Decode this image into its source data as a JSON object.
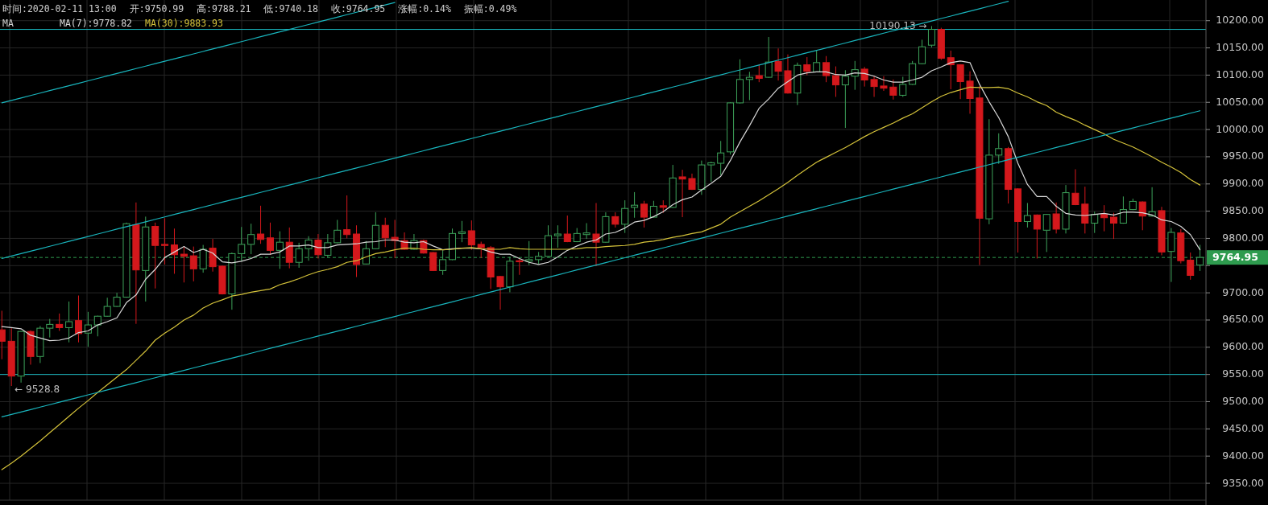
{
  "chart_data": {
    "type": "candlestick",
    "categories": [
      null,
      null,
      null,
      null,
      null,
      null,
      null,
      null,
      null,
      null,
      null,
      null,
      null,
      null,
      null,
      null,
      null,
      null,
      null,
      null,
      null,
      null,
      null,
      null,
      null,
      null,
      null,
      null,
      null,
      null,
      null,
      null,
      null,
      null,
      null,
      null,
      null,
      null,
      null,
      null,
      null,
      null,
      null,
      null,
      null,
      null,
      null,
      null,
      null,
      null,
      null,
      null,
      null,
      null,
      null,
      null,
      null,
      null,
      null,
      null,
      null,
      null,
      null,
      null,
      null,
      null,
      null,
      null,
      null,
      null,
      null,
      null,
      null,
      null,
      null,
      null,
      null,
      null,
      null,
      null,
      null,
      null,
      null,
      null,
      null,
      null,
      null,
      null,
      null,
      null,
      null,
      null,
      null,
      null,
      null,
      null,
      null,
      null,
      null,
      null,
      null,
      null,
      null,
      null,
      null,
      null,
      null,
      null,
      null,
      null,
      null,
      null,
      null,
      null,
      null,
      null,
      null,
      null,
      null,
      null,
      null,
      null,
      null,
      null,
      null,
      null
    ],
    "ohlc": [
      [
        9632,
        9667,
        9578,
        9611
      ],
      [
        9611,
        9635,
        9528.8,
        9547
      ],
      [
        9547,
        9630,
        9535,
        9629
      ],
      [
        9629,
        9631,
        9568,
        9583
      ],
      [
        9583,
        9639,
        9571,
        9635
      ],
      [
        9635,
        9652,
        9618,
        9642
      ],
      [
        9642,
        9662,
        9630,
        9636
      ],
      [
        9636,
        9684,
        9609,
        9647
      ],
      [
        9649,
        9695,
        9609,
        9625
      ],
      [
        9626,
        9665,
        9601,
        9641
      ],
      [
        9641,
        9658,
        9620,
        9657
      ],
      [
        9657,
        9691,
        9656,
        9675
      ],
      [
        9675,
        9700,
        9674,
        9692
      ],
      [
        9692,
        9829,
        9691,
        9827
      ],
      [
        9825,
        9866,
        9643,
        9742
      ],
      [
        9741,
        9840,
        9684,
        9821
      ],
      [
        9822,
        9829,
        9708,
        9787
      ],
      [
        9789,
        9837,
        9752,
        9787
      ],
      [
        9788,
        9818,
        9735,
        9770
      ],
      [
        9771,
        9785,
        9719,
        9767
      ],
      [
        9768,
        9785,
        9721,
        9744
      ],
      [
        9744,
        9788,
        9737,
        9780
      ],
      [
        9782,
        9799,
        9739,
        9748
      ],
      [
        9749,
        9750,
        9697,
        9698
      ],
      [
        9698,
        9774,
        9669,
        9772
      ],
      [
        9772,
        9821,
        9758,
        9789
      ],
      [
        9789,
        9827,
        9771,
        9807
      ],
      [
        9808,
        9860,
        9790,
        9798
      ],
      [
        9801,
        9829,
        9770,
        9778
      ],
      [
        9778,
        9813,
        9744,
        9793
      ],
      [
        9793,
        9820,
        9745,
        9756
      ],
      [
        9756,
        9792,
        9746,
        9781
      ],
      [
        9781,
        9804,
        9759,
        9797
      ],
      [
        9797,
        9808,
        9763,
        9770
      ],
      [
        9769,
        9808,
        9765,
        9792
      ],
      [
        9792,
        9834,
        9791,
        9815
      ],
      [
        9816,
        9879,
        9800,
        9807
      ],
      [
        9808,
        9824,
        9729,
        9752
      ],
      [
        9753,
        9795,
        9752,
        9781
      ],
      [
        9781,
        9848,
        9780,
        9824
      ],
      [
        9824,
        9838,
        9784,
        9801
      ],
      [
        9802,
        9834,
        9764,
        9796
      ],
      [
        9796,
        9811,
        9779,
        9780
      ],
      [
        9780,
        9808,
        9779,
        9796
      ],
      [
        9796,
        9798,
        9772,
        9773
      ],
      [
        9774,
        9775,
        9740,
        9741
      ],
      [
        9741,
        9778,
        9733,
        9761
      ],
      [
        9761,
        9818,
        9760,
        9809
      ],
      [
        9809,
        9832,
        9793,
        9812
      ],
      [
        9814,
        9833,
        9779,
        9788
      ],
      [
        9789,
        9794,
        9764,
        9783
      ],
      [
        9783,
        9786,
        9707,
        9729
      ],
      [
        9730,
        9731,
        9669,
        9711
      ],
      [
        9711,
        9766,
        9701,
        9758
      ],
      [
        9759,
        9762,
        9733,
        9757
      ],
      [
        9758,
        9795,
        9751,
        9761
      ],
      [
        9761,
        9775,
        9753,
        9767
      ],
      [
        9767,
        9824,
        9766,
        9805
      ],
      [
        9805,
        9824,
        9783,
        9808
      ],
      [
        9808,
        9842,
        9793,
        9794
      ],
      [
        9794,
        9819,
        9793,
        9809
      ],
      [
        9807,
        9828,
        9799,
        9810
      ],
      [
        9808,
        9865,
        9749,
        9793
      ],
      [
        9793,
        9848,
        9792,
        9840
      ],
      [
        9840,
        9848,
        9820,
        9826
      ],
      [
        9826,
        9870,
        9810,
        9855
      ],
      [
        9857,
        9885,
        9838,
        9861
      ],
      [
        9863,
        9869,
        9820,
        9839
      ],
      [
        9839,
        9869,
        9838,
        9859
      ],
      [
        9860,
        9870,
        9847,
        9857
      ],
      [
        9857,
        9935,
        9856,
        9911
      ],
      [
        9913,
        9926,
        9839,
        9909
      ],
      [
        9910,
        9919,
        9889,
        9890
      ],
      [
        9890,
        9943,
        9880,
        9935
      ],
      [
        9935,
        9941,
        9904,
        9939
      ],
      [
        9938,
        9979,
        9916,
        9957
      ],
      [
        9959,
        10050,
        9954,
        10049
      ],
      [
        10049,
        10129,
        10048,
        10092
      ],
      [
        10092,
        10106,
        10054,
        10096
      ],
      [
        10099,
        10120,
        10087,
        10094
      ],
      [
        10096,
        10170,
        10095,
        10124
      ],
      [
        10125,
        10149,
        10090,
        10107
      ],
      [
        10108,
        10138,
        10066,
        10067
      ],
      [
        10067,
        10123,
        10045,
        10118
      ],
      [
        10119,
        10133,
        10100,
        10107
      ],
      [
        10106,
        10145,
        10105,
        10123
      ],
      [
        10123,
        10135,
        10087,
        10099
      ],
      [
        10099,
        10116,
        10060,
        10082
      ],
      [
        10082,
        10109,
        10003,
        10098
      ],
      [
        10098,
        10126,
        10073,
        10110
      ],
      [
        10111,
        10115,
        10079,
        10091
      ],
      [
        10092,
        10098,
        10060,
        10079
      ],
      [
        10080,
        10098,
        10071,
        10076
      ],
      [
        10078,
        10092,
        10055,
        10063
      ],
      [
        10063,
        10097,
        10060,
        10083
      ],
      [
        10083,
        10126,
        10082,
        10121
      ],
      [
        10121,
        10165,
        10120,
        10152
      ],
      [
        10155,
        10190.13,
        10151,
        10184
      ],
      [
        10184,
        10187,
        10128,
        10131
      ],
      [
        10132,
        10145,
        10074,
        10119
      ],
      [
        10119,
        10120,
        10056,
        10088
      ],
      [
        10089,
        10107,
        10029,
        10057
      ],
      [
        10058,
        10080,
        9751,
        9837
      ],
      [
        9836,
        10019,
        9826,
        9953
      ],
      [
        9953,
        9993,
        9937,
        9965
      ],
      [
        9965,
        9968,
        9864,
        9890
      ],
      [
        9891,
        9892,
        9774,
        9831
      ],
      [
        9831,
        9865,
        9820,
        9842
      ],
      [
        9843,
        9844,
        9763,
        9817
      ],
      [
        9815,
        9845,
        9775,
        9844
      ],
      [
        9845,
        9866,
        9809,
        9817
      ],
      [
        9817,
        9898,
        9809,
        9884
      ],
      [
        9883,
        9927,
        9861,
        9862
      ],
      [
        9863,
        9895,
        9809,
        9828
      ],
      [
        9828,
        9849,
        9810,
        9844
      ],
      [
        9844,
        9861,
        9813,
        9838
      ],
      [
        9839,
        9847,
        9799,
        9828
      ],
      [
        9828,
        9877,
        9827,
        9853
      ],
      [
        9853,
        9873,
        9852,
        9868
      ],
      [
        9867,
        9868,
        9815,
        9841
      ],
      [
        9841,
        9894,
        9840,
        9849
      ],
      [
        9851,
        9858,
        9769,
        9775
      ],
      [
        9776,
        9819,
        9720,
        9811
      ],
      [
        9810,
        9817,
        9754,
        9759
      ],
      [
        9760,
        9774,
        9724,
        9732
      ],
      [
        9750.99,
        9788.21,
        9740.18,
        9764.95
      ]
    ],
    "series": [
      {
        "name": "MA(7):9778.82",
        "type": "line",
        "color": "#d8d8d8",
        "values": [
          9638,
          9636,
          9634,
          9622,
          9617,
          9612,
          9613,
          9617,
          9627,
          9630,
          9641,
          9647,
          9654,
          9682,
          9696,
          9725,
          9743,
          9765,
          9775,
          9785,
          9774,
          9780,
          9773,
          9757,
          9755,
          9758,
          9763,
          9771,
          9771,
          9775,
          9786,
          9786,
          9788,
          9783,
          9783,
          9788,
          9789,
          9790,
          9793,
          9794,
          9797,
          9797,
          9793,
          9792,
          9794,
          9786,
          9779,
          9781,
          9782,
          9782,
          9781,
          9775,
          9771,
          9771,
          9763,
          9756,
          9752,
          9756,
          9766,
          9778,
          9786,
          9793,
          9797,
          9808,
          9811,
          9819,
          9830,
          9833,
          9840,
          9849,
          9862,
          9871,
          9876,
          9889,
          9901,
          9914,
          9943,
          9977,
          10007,
          10039,
          10056,
          10076,
          10088,
          10100,
          10104,
          10106,
          10106,
          10101,
          10100,
          10104,
          10103,
          10098,
          10091,
          10087,
          10087,
          10091,
          10096,
          10108,
          10115,
          10123,
          10126,
          10123,
          10083,
          10051,
          10022,
          9987,
          9938,
          9899,
          9877,
          9877,
          9859,
          9846,
          9843,
          9842,
          9844,
          9846,
          9843,
          9848,
          9848,
          9847,
          9843,
          9834,
          9831,
          9822,
          9807,
          9779
        ]
      },
      {
        "name": "MA(30):9883.93",
        "type": "line",
        "color": "#d4c23a",
        "values": [
          9375,
          9387,
          9400,
          9414,
          9428,
          9443,
          9458,
          9473,
          9488,
          9502,
          9517,
          9531,
          9545,
          9559,
          9576,
          9593,
          9613,
          9626,
          9637,
          9650,
          9659,
          9672,
          9681,
          9687,
          9694,
          9697,
          9701,
          9704,
          9707,
          9715,
          9720,
          9726,
          9733,
          9739,
          9743,
          9748,
          9756,
          9759,
          9766,
          9772,
          9775,
          9779,
          9782,
          9782,
          9780,
          9779,
          9779,
          9780,
          9782,
          9783,
          9781,
          9780,
          9780,
          9783,
          9781,
          9780,
          9780,
          9780,
          9780,
          9780,
          9781,
          9783,
          9783,
          9785,
          9786,
          9787,
          9789,
          9793,
          9795,
          9798,
          9802,
          9805,
          9809,
          9812,
          9819,
          9826,
          9839,
          9849,
          9859,
          9869,
          9880,
          9891,
          9903,
          9916,
          9928,
          9940,
          9949,
          9958,
          9967,
          9977,
          9987,
          9996,
          10004,
          10012,
          10021,
          10029,
          10040,
          10051,
          10061,
          10068,
          10073,
          10078,
          10077,
          10077,
          10078,
          10075,
          10067,
          10060,
          10051,
          10044,
          10032,
          10024,
          10017,
          10008,
          10000,
          9992,
          9982,
          9975,
          9968,
          9959,
          9950,
          9940,
          9931,
          9921,
          9908,
          9898
        ]
      },
      {
        "type": "line",
        "color": "#19b5bd",
        "values": [
          10049,
          10053.5,
          10058,
          10062.5,
          10067,
          10071.5,
          10076,
          10080.5,
          10085,
          10089.5,
          10094,
          10098.5,
          10103,
          10107.5,
          10112,
          10116.5,
          10121,
          10125.5,
          10130,
          10134.5,
          10139,
          10143.5,
          10148,
          10152.5,
          10157,
          10161.5,
          10166,
          10170.5,
          10175,
          10179.5,
          10184,
          10188.5,
          10193,
          10197.5,
          10202,
          10206.5,
          10211,
          10215.5,
          10220,
          10224.5,
          10229,
          10233.5,
          null,
          null,
          null,
          null,
          null,
          null,
          null,
          null,
          null,
          null,
          null,
          null,
          null,
          null,
          null,
          null,
          null,
          null,
          null,
          null,
          null,
          null,
          null,
          null,
          null,
          null,
          null,
          null,
          null,
          null,
          null,
          null,
          null,
          null,
          null,
          null,
          null,
          null,
          null,
          null,
          null,
          null,
          null,
          null,
          null,
          null,
          null,
          null,
          null,
          null,
          null,
          null,
          null,
          null,
          null,
          null,
          null,
          null,
          null,
          null,
          null,
          null,
          null,
          null,
          null,
          null,
          null,
          null,
          null,
          null,
          null,
          null,
          null,
          null,
          null,
          null,
          null,
          null,
          null,
          null,
          null,
          null,
          null,
          null
        ]
      },
      {
        "type": "line",
        "color": "#19b5bd",
        "values": [
          9763,
          9767.5,
          9772,
          9776.5,
          9781,
          9785.5,
          9790,
          9794.5,
          9799,
          9803.5,
          9808,
          9812.5,
          9817,
          9821.5,
          9826,
          9830.5,
          9835,
          9839.5,
          9844,
          9848.5,
          9853,
          9857.5,
          9862,
          9866.5,
          9871,
          9875.5,
          9880,
          9884.5,
          9889,
          9893.5,
          9898,
          9902.5,
          9907,
          9911.5,
          9916,
          9920.5,
          9925,
          9929.5,
          9934,
          9938.5,
          9943,
          9947.5,
          9952,
          9956.5,
          9961,
          9965.5,
          9970,
          9974.5,
          9979,
          9983.5,
          9988,
          9992.5,
          9997,
          10001.5,
          10006,
          10010.5,
          10015,
          10019.5,
          10024,
          10028.5,
          10033,
          10037.5,
          10042,
          10046.5,
          10051,
          10055.5,
          10060,
          10064.5,
          10069,
          10073.5,
          10078,
          10082.5,
          10087,
          10091.5,
          10096,
          10100.5,
          10105,
          10109.5,
          10114,
          10118.5,
          10123,
          10127.5,
          10132,
          10136.5,
          10141,
          10145.5,
          10150,
          10154.5,
          10159,
          10163.5,
          10168,
          10172.5,
          10177,
          10181.5,
          10186,
          10190.5,
          10195,
          10199.5,
          10204,
          10208.5,
          10213,
          10217.5,
          10222,
          10226.5,
          10231,
          10235.5,
          null,
          null,
          null,
          null,
          null,
          null,
          null,
          null,
          null,
          null,
          null,
          null,
          null,
          null,
          null,
          null,
          null,
          null,
          null,
          null
        ]
      },
      {
        "type": "line",
        "color": "#19b5bd",
        "values": [
          9472,
          9476.5,
          9481,
          9485.5,
          9490,
          9494.5,
          9499,
          9503.5,
          9508,
          9512.5,
          9517,
          9521.5,
          9526,
          9530.5,
          9535,
          9539.5,
          9544,
          9548.5,
          9553,
          9557.5,
          9562,
          9566.5,
          9571,
          9575.5,
          9580,
          9584.5,
          9589,
          9593.5,
          9598,
          9602.5,
          9607,
          9611.5,
          9616,
          9620.5,
          9625,
          9629.5,
          9634,
          9638.5,
          9643,
          9647.5,
          9652,
          9656.5,
          9661,
          9665.5,
          9670,
          9674.5,
          9679,
          9683.5,
          9688,
          9692.5,
          9697,
          9701.5,
          9706,
          9710.5,
          9715,
          9719.5,
          9724,
          9728.5,
          9733,
          9737.5,
          9742,
          9746.5,
          9751,
          9755.5,
          9760,
          9764.5,
          9769,
          9773.5,
          9778,
          9782.5,
          9787,
          9791.5,
          9796,
          9800.5,
          9805,
          9809.5,
          9814,
          9818.5,
          9823,
          9827.5,
          9832,
          9836.5,
          9841,
          9845.5,
          9850,
          9854.5,
          9859,
          9863.5,
          9868,
          9872.5,
          9877,
          9881.5,
          9886,
          9890.5,
          9895,
          9899.5,
          9904,
          9908.5,
          9913,
          9917.5,
          9922,
          9926.5,
          9931,
          9935.5,
          9940,
          9944.5,
          9949,
          9953.5,
          9958,
          9962.5,
          9967,
          9971.5,
          9976,
          9980.5,
          9985,
          9989.5,
          9994,
          9998.5,
          10003,
          10007.5,
          10012,
          10016.5,
          10021,
          10025.5,
          10030,
          10034.5
        ]
      }
    ],
    "ylim": [
      9319,
      10238
    ],
    "yticks": [
      {
        "value": 9350,
        "label": "9350.00"
      },
      {
        "value": 9400,
        "label": "9400.00"
      },
      {
        "value": 9450,
        "label": "9450.00"
      },
      {
        "value": 9500,
        "label": "9500.00"
      },
      {
        "value": 9550,
        "label": "9550.00"
      },
      {
        "value": 9600,
        "label": "9600.00"
      },
      {
        "value": 9650,
        "label": "9650.00"
      },
      {
        "value": 9700,
        "label": "9700.00"
      },
      {
        "value": 9750,
        "label": null
      },
      {
        "value": 9800,
        "label": "9800.00"
      },
      {
        "value": 9850,
        "label": "9850.00"
      },
      {
        "value": 9900,
        "label": "9900.00"
      },
      {
        "value": 9950,
        "label": "9950.00"
      },
      {
        "value": 10000,
        "label": "10000.00"
      },
      {
        "value": 10050,
        "label": "10050.00"
      },
      {
        "value": 10100,
        "label": "10100.00"
      },
      {
        "value": 10150,
        "label": "10150.00"
      },
      {
        "value": 10200,
        "label": "10200.00"
      }
    ],
    "grid": true,
    "legend": "top left",
    "legend_title": "MA",
    "ref_lines": [
      {
        "axis": "y",
        "value": 10184,
        "color": "#19b5bd"
      },
      {
        "axis": "y",
        "value": 9550,
        "color": "#19b5bd"
      },
      {
        "axis": "y",
        "value": 9764.95,
        "label": "9764.95",
        "color": "#2e9b4e",
        "line_style": "dashed"
      }
    ],
    "annotations": [
      "时间:2020-02-11 13:00",
      "开:9750.99",
      "高:9788.21",
      "低:9740.18",
      "收:9764.95",
      "涨幅:0.14%",
      "振幅:0.49%",
      {
        "text": "10190.13 →",
        "y": 10190.13
      },
      "← 9528.8"
    ]
  }
}
